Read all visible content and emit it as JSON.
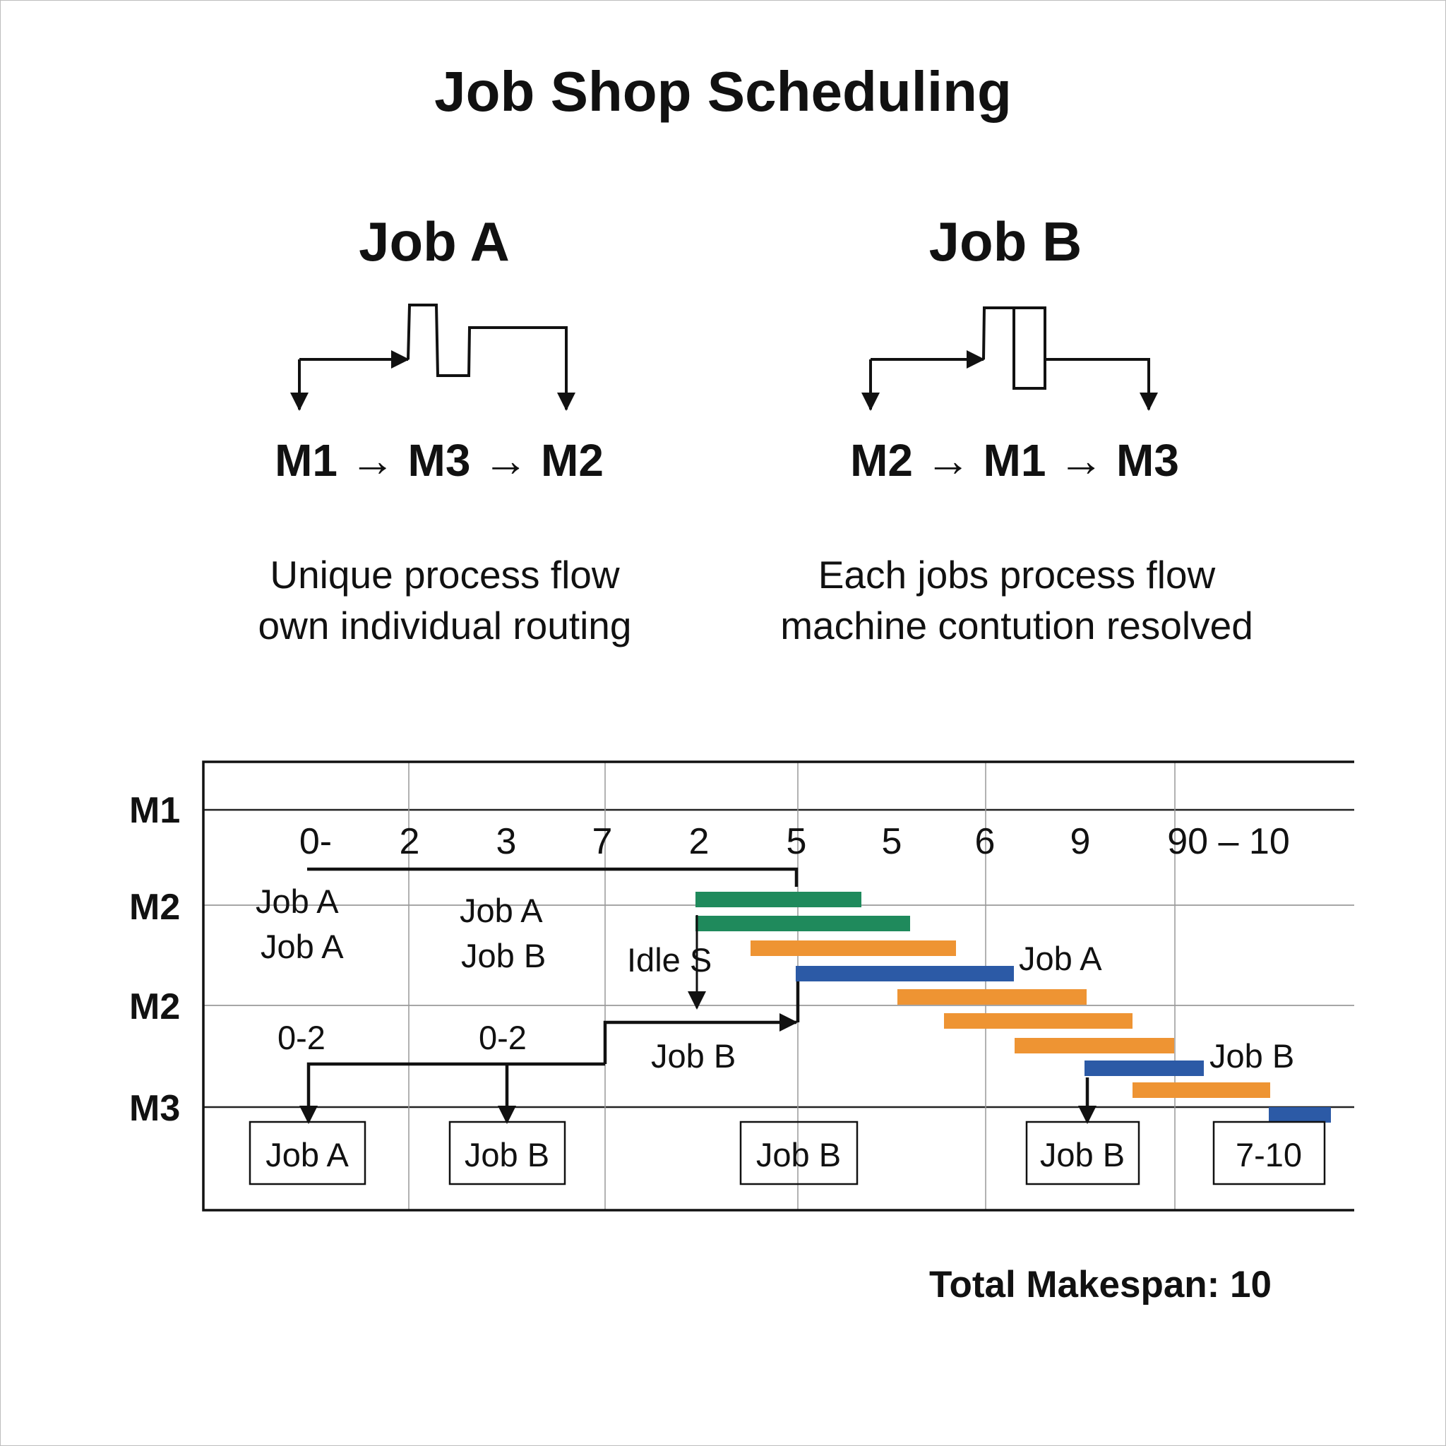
{
  "title": "Job Shop Scheduling",
  "jobs": [
    {
      "name": "Job A",
      "route": "M1 → M3 → M2",
      "desc": [
        "Unique process flow",
        "own individual routing"
      ]
    },
    {
      "name": "Job B",
      "route": "M2 → M1 → M3",
      "desc": [
        "Each jobs process flow",
        "machine contution resolved"
      ]
    }
  ],
  "gantt": {
    "machines": [
      "M1",
      "M2",
      "M2",
      "M3"
    ],
    "ticks": [
      "0-",
      "2",
      "3",
      "7",
      "2",
      "5",
      "5",
      "6",
      "9",
      "90 – 10"
    ],
    "row_labels": {
      "m2_left_1": "Job A",
      "m2_left_2": "Job A",
      "m2_mid_1": "Job A",
      "m2_mid_2": "Job B",
      "idle": "Idle S",
      "job_a_right": "Job A",
      "range_1": "0-2",
      "range_2": "0-2",
      "job_b_mid": "Job B",
      "job_b_right": "Job B"
    },
    "boxes": [
      "Job A",
      "Job B",
      "Job B",
      "Job B",
      "7-10"
    ],
    "bar_colors": {
      "green": "#1f8a5c",
      "orange": "#ee9433",
      "blue": "#2c5aa6"
    }
  },
  "makespan": "Total Makespan: 10"
}
